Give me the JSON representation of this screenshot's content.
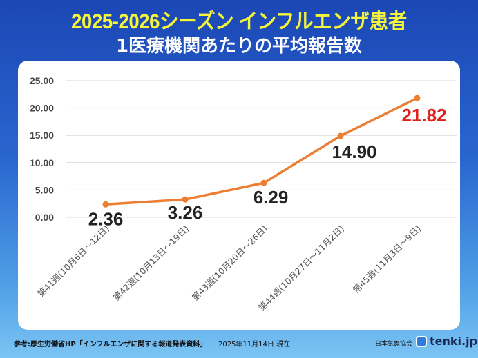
{
  "header": {
    "title": "2025-2026シーズン インフルエンザ患者",
    "subtitle": "1医療機関あたりの平均報告数"
  },
  "footer": {
    "source": "参考:厚生労働省HP「インフルエンザに関する報道発表資料」",
    "date": "2025年11月14日 現在",
    "org": "日本気象協会",
    "logo": "tenki.jp"
  },
  "chart_data": {
    "type": "line",
    "categories": [
      "第41週(10月6日～12日)",
      "第42週(10月13日～19日)",
      "第43週(10月20日～26日)",
      "第44週(10月27日～11月2日)",
      "第45週(11月3日～9日)"
    ],
    "values": [
      2.36,
      3.26,
      6.29,
      14.9,
      21.82
    ],
    "data_labels": [
      "2.36",
      "3.26",
      "6.29",
      "14.90",
      "21.82"
    ],
    "yticks": [
      "0.00",
      "5.00",
      "10.00",
      "15.00",
      "20.00",
      "25.00"
    ],
    "ylim": [
      0,
      25
    ],
    "grid": true,
    "line_color": "#ed7d31",
    "highlight_color": "#e0201c",
    "label_color": "#222222"
  }
}
